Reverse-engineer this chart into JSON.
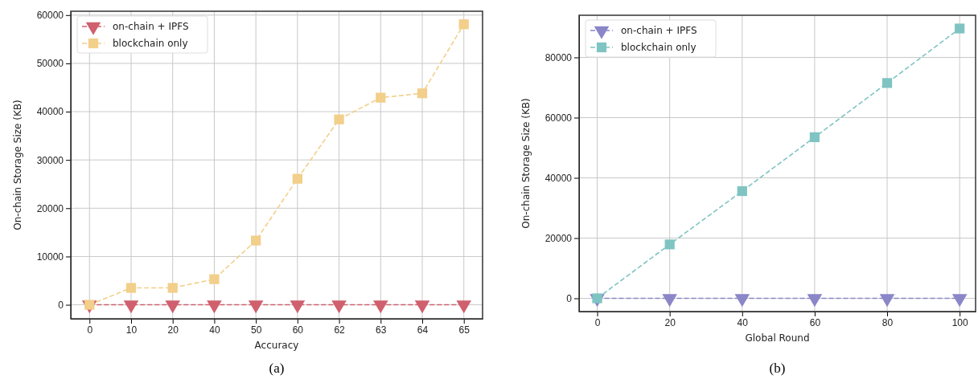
{
  "chart_data": [
    {
      "type": "line",
      "xlabel": "Accuracy",
      "ylabel": "On-chain Storage Size (KB)",
      "annotations": [
        "(a)"
      ],
      "categories": [
        "0",
        "10",
        "20",
        "40",
        "50",
        "60",
        "62",
        "63",
        "64",
        "65"
      ],
      "ylim": [
        -2900,
        60800
      ],
      "yticks": [
        0,
        10000,
        20000,
        30000,
        40000,
        50000,
        60000
      ],
      "grid": true,
      "legend": "top left",
      "line_style": "dashed",
      "series": [
        {
          "name": "on-chain + IPFS",
          "color": "#d0606e",
          "marker": "triangle",
          "values": [
            0,
            0,
            0,
            0,
            0,
            0,
            0,
            0,
            0,
            0
          ]
        },
        {
          "name": "blockchain only",
          "color": "#f2cf8a",
          "marker": "square",
          "values": [
            0,
            3500,
            3500,
            5300,
            13300,
            26100,
            38400,
            42900,
            43800,
            58100
          ]
        }
      ]
    },
    {
      "type": "line",
      "xlabel": "Global Round",
      "ylabel": "On-chain Storage Size (KB)",
      "annotations": [
        "(b)"
      ],
      "x": [
        0,
        20,
        40,
        60,
        80,
        100
      ],
      "xlim": [
        -5,
        104.4
      ],
      "xticks": [
        0,
        20,
        40,
        60,
        80,
        100
      ],
      "ylim": [
        -4400,
        94000
      ],
      "yticks": [
        0,
        20000,
        40000,
        60000,
        80000
      ],
      "grid": true,
      "legend": "top left",
      "line_style": "dashed",
      "series": [
        {
          "name": "on-chain + IPFS",
          "color": "#8a86c8",
          "marker": "triangle",
          "values": [
            0,
            0,
            0,
            0,
            0,
            0
          ]
        },
        {
          "name": "blockchain only",
          "color": "#7fc4c2",
          "marker": "square",
          "values": [
            0,
            17900,
            35600,
            53500,
            71500,
            89600
          ]
        }
      ]
    }
  ]
}
